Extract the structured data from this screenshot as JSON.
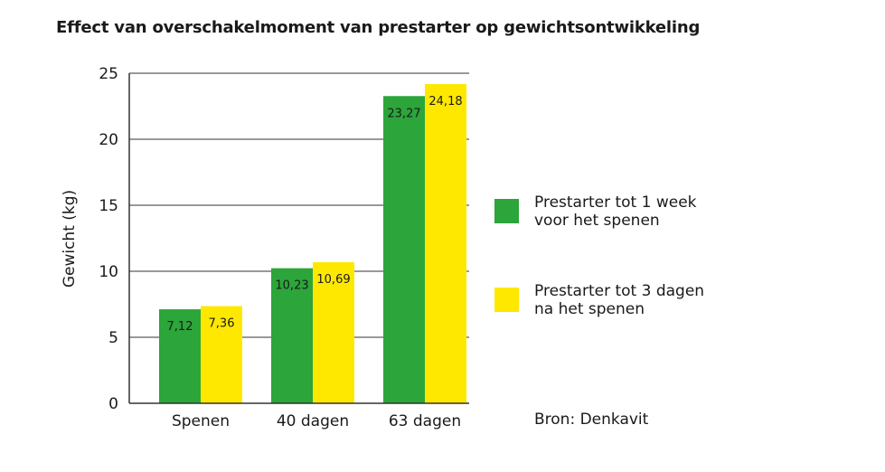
{
  "colors": {
    "series_1": "#2ca53a",
    "series_2": "#ffe800",
    "grid": "#333333",
    "text": "#1a1a1a"
  },
  "legend": {
    "position": "right",
    "items": [
      {
        "label": "Prestarter tot 1 week\nvoor het spenen",
        "color": "#2ca53a"
      },
      {
        "label": "Prestarter tot 3 dagen\nna het spenen",
        "color": "#ffe800"
      }
    ]
  },
  "source_note": "Bron: Denkavit",
  "chart_data": {
    "type": "bar",
    "title": "Effect van overschakelmoment van prestarter op gewichtsontwikkeling",
    "xlabel": "",
    "ylabel": "Gewicht (kg)",
    "categories": [
      "Spenen",
      "40 dagen",
      "63 dagen"
    ],
    "ylim": [
      0,
      25
    ],
    "yticks": [
      0,
      5,
      10,
      15,
      20,
      25
    ],
    "ytick_labels": [
      "0",
      "5",
      "10",
      "15",
      "20",
      "25"
    ],
    "grid": true,
    "series": [
      {
        "name": "Prestarter tot 1 week voor het spenen",
        "color": "#2ca53a",
        "values": [
          7.12,
          10.23,
          23.27
        ],
        "data_labels": [
          "7,12",
          "10,23",
          "23,27"
        ]
      },
      {
        "name": "Prestarter tot 3 dagen na het spenen",
        "color": "#ffe800",
        "values": [
          7.36,
          10.69,
          24.18
        ],
        "data_labels": [
          "7,36",
          "10,69",
          "24,18"
        ]
      }
    ]
  }
}
